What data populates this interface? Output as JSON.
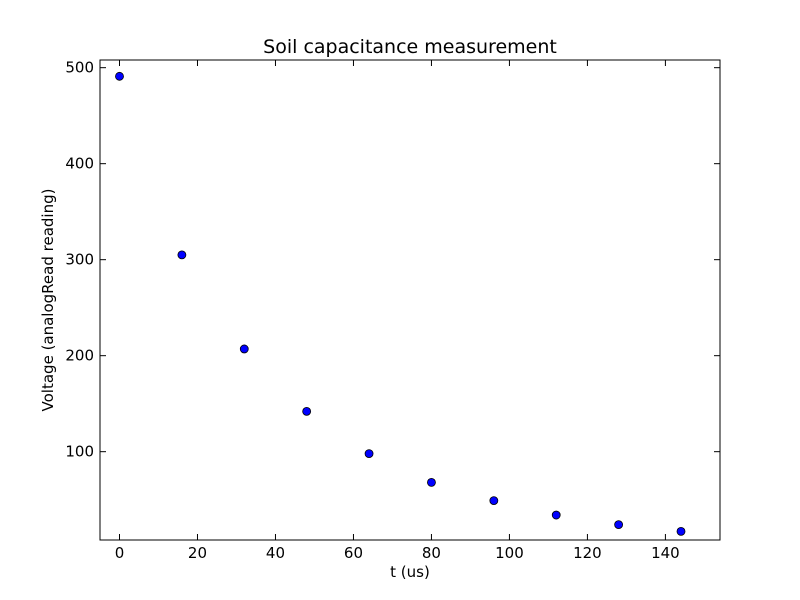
{
  "chart_data": {
    "type": "scatter",
    "title": "Soil capacitance measurement",
    "xlabel": "t (us)",
    "ylabel": "Voltage (analogRead reading)",
    "xlim": [
      -5,
      154
    ],
    "ylim": [
      8,
      508
    ],
    "xticks": [
      0,
      20,
      40,
      60,
      80,
      100,
      120,
      140
    ],
    "yticks": [
      100,
      200,
      300,
      400,
      500
    ],
    "grid": false,
    "marker_color": "#0000ff",
    "series": [
      {
        "x": [
          0,
          16,
          32,
          48,
          64,
          80,
          96,
          112,
          128,
          144
        ],
        "y": [
          491,
          305,
          207,
          142,
          98,
          68,
          49,
          34,
          24,
          17
        ]
      }
    ]
  }
}
